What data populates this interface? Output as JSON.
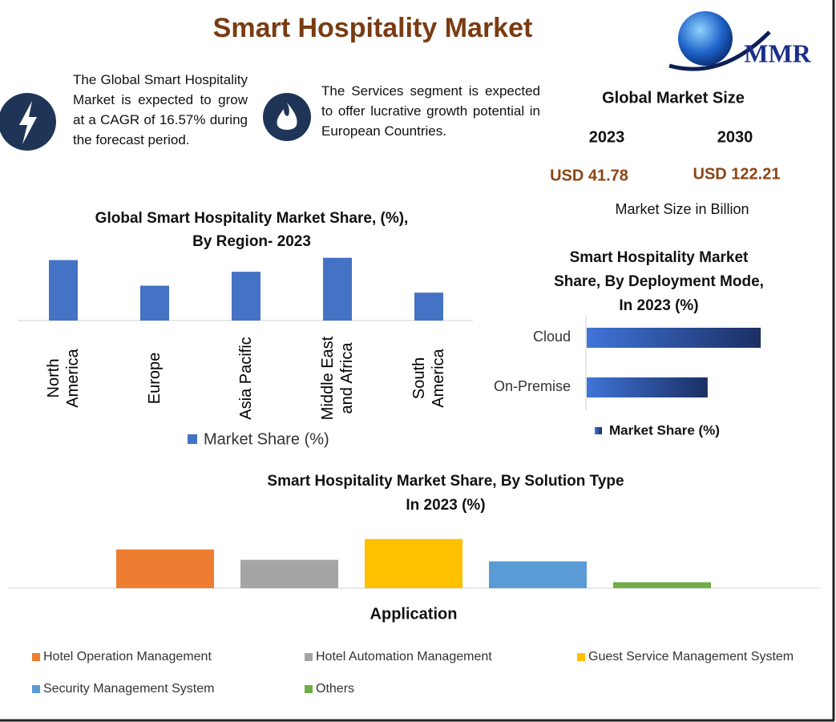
{
  "title": "Smart Hospitality Market",
  "logo": "MMR",
  "highlights": [
    "The Global Smart Hospitality Market is expected to grow at a CAGR of 16.57% during the forecast period.",
    "The Services segment is expected to offer lucrative growth potential in European Countries."
  ],
  "market_size": {
    "title": "Global Market Size",
    "years": [
      "2023",
      "2030"
    ],
    "values": [
      "USD 41.78",
      "USD 122.21"
    ],
    "note": "Market Size in Billion"
  },
  "chart_data": [
    {
      "type": "bar",
      "title": [
        "Global Smart Hospitality Market Share, (%),",
        "By Region- 2023"
      ],
      "categories": [
        "North America",
        "Europe",
        "Asia Pacific",
        "Middle East and Africa",
        "South America"
      ],
      "series": [
        {
          "name": "Market Share (%)",
          "color": "#4472c4",
          "values": [
            26,
            15,
            21,
            27,
            12
          ]
        }
      ]
    },
    {
      "type": "hbar",
      "title": [
        "Smart Hospitality Market",
        "Share, By Deployment Mode,",
        "In 2023 (%)"
      ],
      "categories": [
        "Cloud",
        "On-Premise"
      ],
      "series": [
        {
          "name": "Market Share (%)",
          "color": "#1b2f63",
          "values": [
            59,
            41
          ]
        }
      ]
    },
    {
      "type": "colorbar",
      "title": [
        "Smart Hospitality Market  Share, By Solution Type",
        "In 2023 (%)"
      ],
      "x_label": "Application",
      "categories": [
        "Hotel Operation Management",
        "Hotel Automation Management",
        "Guest Service Management System",
        "Security Management System",
        "Others"
      ],
      "colors": [
        "#ed7d31",
        "#a5a5a5",
        "#ffc000",
        "#5b9bd5",
        "#70ad47"
      ],
      "values": [
        26,
        19,
        33,
        18,
        4
      ]
    }
  ]
}
